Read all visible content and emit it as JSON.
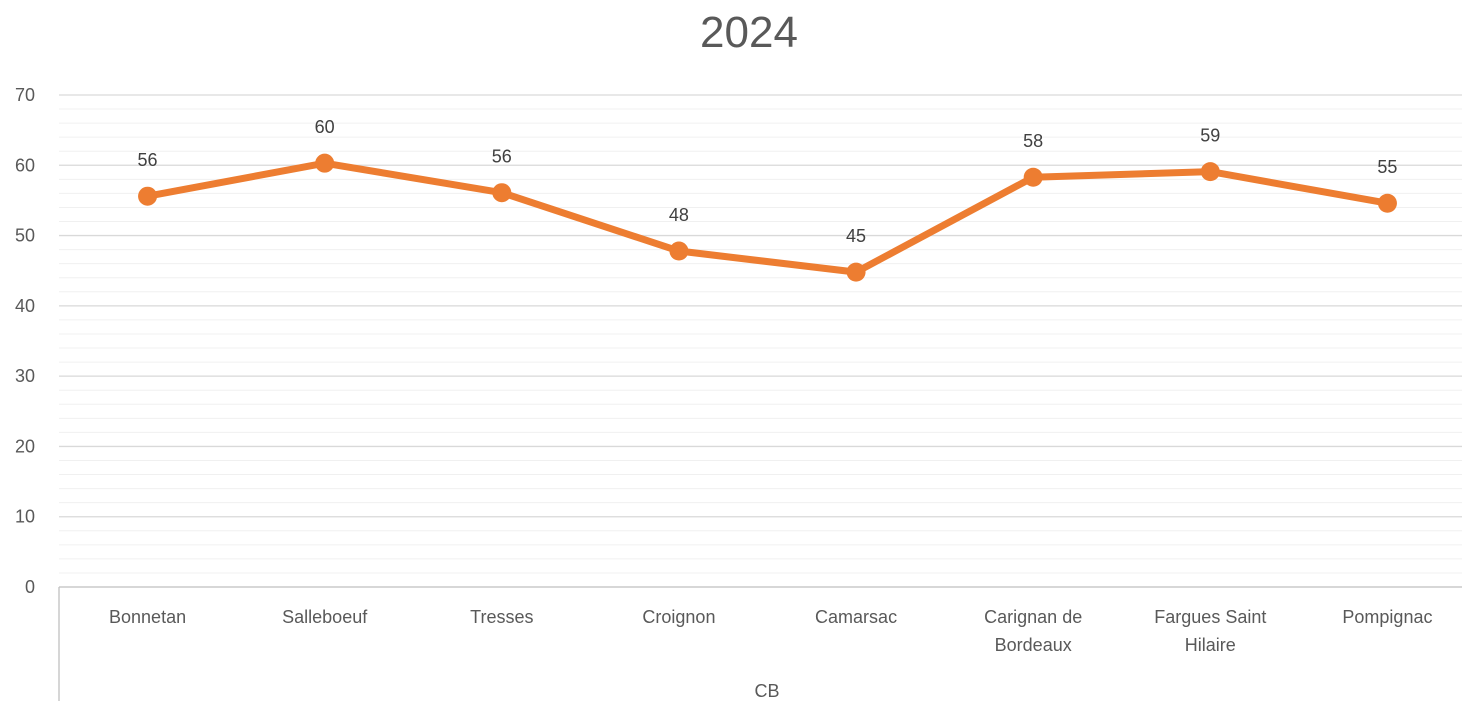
{
  "chart_data": {
    "type": "line",
    "title": "2024",
    "categories": [
      "Bonnetan",
      "Salleboeuf",
      "Tresses",
      "Croignon",
      "Camarsac",
      "Carignan de Bordeaux",
      "Fargues Saint Hilaire",
      "Pompignac"
    ],
    "category_lines": [
      [
        "Bonnetan"
      ],
      [
        "Salleboeuf"
      ],
      [
        "Tresses"
      ],
      [
        "Croignon"
      ],
      [
        "Camarsac"
      ],
      [
        "Carignan de",
        "Bordeaux"
      ],
      [
        "Fargues Saint",
        "Hilaire"
      ],
      [
        "Pompignac"
      ]
    ],
    "group_label": "CB",
    "series": [
      {
        "values": [
          55.6,
          60.3,
          56.1,
          47.8,
          44.8,
          58.3,
          59.1,
          54.6
        ],
        "data_labels": [
          "56",
          "60",
          "56",
          "48",
          "45",
          "58",
          "59",
          "55"
        ],
        "color": "#ED7D31"
      }
    ],
    "yticks": [
      "0",
      "10",
      "20",
      "30",
      "40",
      "50",
      "60",
      "70"
    ],
    "ylim": [
      0,
      70
    ],
    "major_step": 10,
    "minor_step": 2,
    "grid": true,
    "legend": "none"
  },
  "colors": {
    "major_grid": "#d9d9d9",
    "minor_grid": "#f0f0f0",
    "axis": "#bfbfbf"
  }
}
